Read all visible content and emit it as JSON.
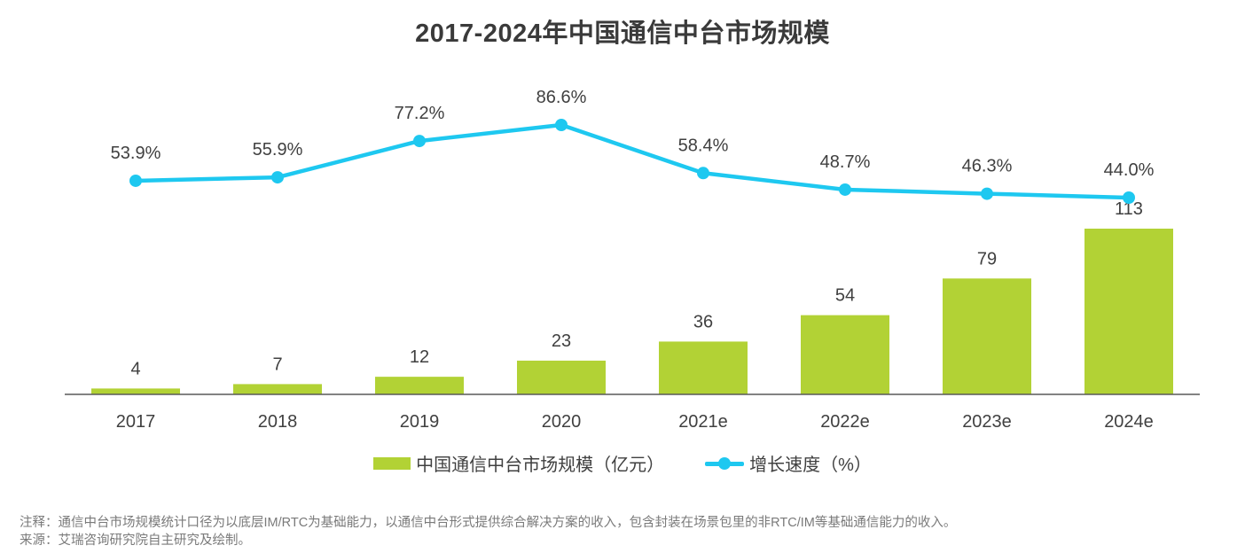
{
  "title": "2017-2024年中国通信中台市场规模",
  "chart_data": {
    "type": "bar+line",
    "title": "2017-2024年中国通信中台市场规模",
    "categories": [
      "2017",
      "2018",
      "2019",
      "2020",
      "2021e",
      "2022e",
      "2023e",
      "2024e"
    ],
    "series": [
      {
        "name": "中国通信中台市场规模（亿元）",
        "type": "bar",
        "axis": "left",
        "color": "#b2d235",
        "values": [
          4,
          7,
          12,
          23,
          36,
          54,
          79,
          113
        ],
        "labels": [
          "4",
          "7",
          "12",
          "23",
          "36",
          "54",
          "79",
          "113"
        ]
      },
      {
        "name": "增长速度（%）",
        "type": "line",
        "axis": "right",
        "color": "#1ec8f0",
        "values": [
          53.9,
          55.9,
          77.2,
          86.6,
          58.4,
          48.7,
          46.3,
          44.0
        ],
        "labels": [
          "53.9%",
          "55.9%",
          "77.2%",
          "86.6%",
          "58.4%",
          "48.7%",
          "46.3%",
          "44.0%"
        ]
      }
    ],
    "xlabel": "",
    "ylabel": "",
    "ylim_left": [
      0,
      113
    ],
    "ylim_right": [
      44.0,
      86.6
    ],
    "grid": false,
    "legend": "bottom-center"
  },
  "legend": {
    "bar_label": "中国通信中台市场规模（亿元）",
    "line_label": "增长速度（%）"
  },
  "notes": {
    "note": "注释：通信中台市场规模统计口径为以底层IM/RTC为基础能力，以通信中台形式提供综合解决方案的收入，包含封装在场景包里的非RTC/IM等基础通信能力的收入。",
    "source": "来源：艾瑞咨询研究院自主研究及绘制。"
  }
}
